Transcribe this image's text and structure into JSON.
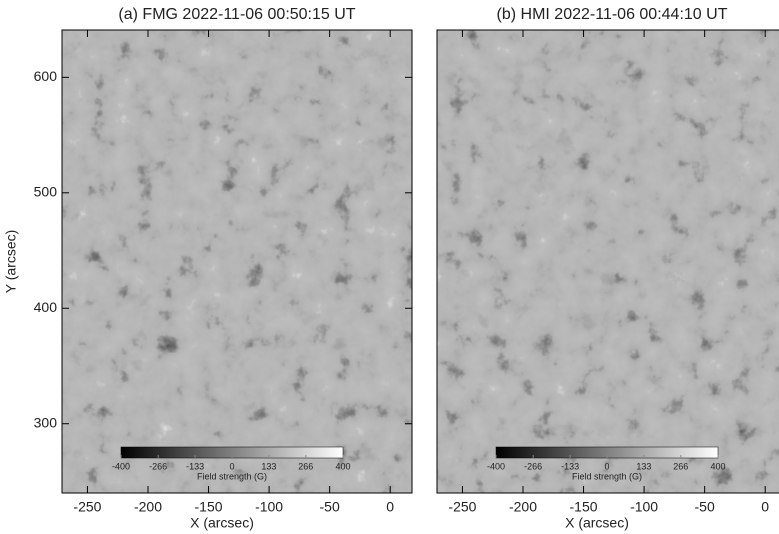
{
  "chart_data": [
    {
      "type": "image",
      "title": "(a) FMG 2022-11-06 00:50:15 UT",
      "xlabel": "X (arcsec)",
      "ylabel": "Y (arcsec)",
      "xlim": [
        -271,
        18
      ],
      "ylim": [
        240,
        641
      ],
      "xticks": [
        -250,
        -200,
        -150,
        -100,
        -50,
        0
      ],
      "yticks": [
        300,
        400,
        500,
        600
      ],
      "colorbar": {
        "label": "Field strength (G)",
        "lim": [
          -400,
          400
        ],
        "ticks": [
          -400,
          -266,
          -133,
          0,
          133,
          266,
          400
        ]
      }
    },
    {
      "type": "image",
      "title": "(b) HMI 2022-11-06 00:44:10 UT",
      "xlabel": "X (arcsec)",
      "xlim": [
        -271,
        18
      ],
      "ylim": [
        240,
        641
      ],
      "xticks": [
        -250,
        -200,
        -150,
        -100,
        -50,
        0
      ],
      "colorbar": {
        "label": "Field strength (G)",
        "lim": [
          -400,
          400
        ],
        "ticks": [
          -400,
          -266,
          -133,
          0,
          133,
          266,
          400
        ]
      }
    }
  ]
}
